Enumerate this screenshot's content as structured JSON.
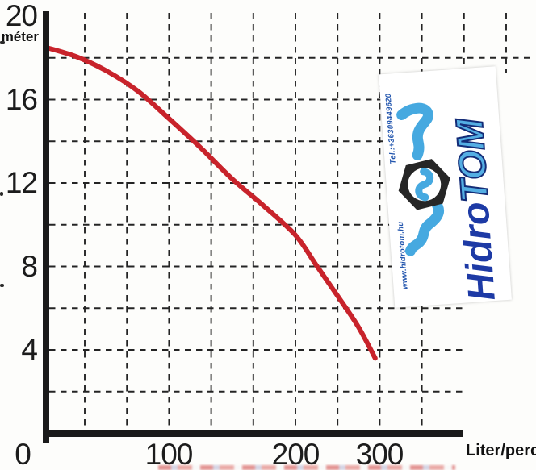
{
  "chart_data": {
    "type": "line",
    "title": "",
    "xlabel": "Liter/perc",
    "ylabel": "méter",
    "x_ticks": [
      0,
      100,
      200,
      300
    ],
    "y_ticks": [
      20,
      16,
      12,
      8,
      4
    ],
    "xlim": [
      0,
      350
    ],
    "ylim": [
      0,
      20
    ],
    "grid": "dashed",
    "legend": "none",
    "series": [
      {
        "name": "pump head curve",
        "color": "#c8232b",
        "points": [
          [
            0,
            18.5
          ],
          [
            25,
            18.05
          ],
          [
            50,
            17.35
          ],
          [
            75,
            16.4
          ],
          [
            100,
            15.1
          ],
          [
            125,
            13.7
          ],
          [
            150,
            12.2
          ],
          [
            175,
            10.9
          ],
          [
            200,
            9.5
          ],
          [
            225,
            8.05
          ],
          [
            250,
            6.6
          ],
          [
            275,
            5.1
          ],
          [
            295,
            3.6
          ]
        ]
      }
    ]
  },
  "logo": {
    "brand_part1": "Hidro",
    "brand_part2": "TOM",
    "phone": "Tel.:+36309449620",
    "website": "www.hidrotom.hu",
    "colors": {
      "dark_blue": "#1d3aa5",
      "light_blue": "#46a9e0",
      "hex_nut": "#262626"
    }
  }
}
